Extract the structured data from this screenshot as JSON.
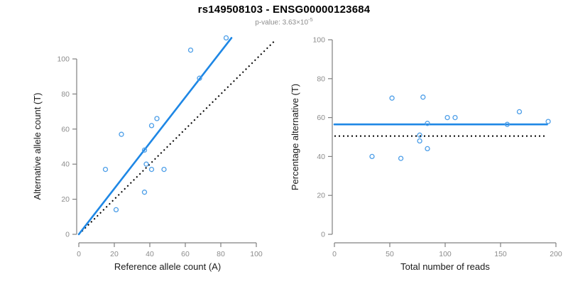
{
  "header": {
    "title": "rs149508103 - ENSG00000123684",
    "p_value_prefix": "p-value: 3.63×10",
    "p_value_exponent": "-5"
  },
  "colors": {
    "title": "#000000",
    "subtitle": "#8c8c8c",
    "axis": "#808080",
    "tick_labels": "#8c8c8c",
    "axis_labels": "#1a1a1a",
    "regression_line": "#1e87e5",
    "points": "#4c9ee8",
    "identity_line": "#000000"
  },
  "chart_data": [
    {
      "type": "scatter",
      "name": "allele-count-scatter",
      "xlabel": "Reference allele count (A)",
      "ylabel": "Alternative allele count (T)",
      "xlim": [
        0,
        100
      ],
      "ylim": [
        0,
        100
      ],
      "x_ticks": [
        0,
        20,
        40,
        60,
        80,
        100
      ],
      "y_ticks": [
        0,
        20,
        40,
        60,
        80,
        100
      ],
      "grid": false,
      "points": [
        [
          15,
          37
        ],
        [
          21,
          14
        ],
        [
          24,
          57
        ],
        [
          37,
          24
        ],
        [
          37,
          48
        ],
        [
          38,
          40
        ],
        [
          41,
          37
        ],
        [
          41,
          62
        ],
        [
          44,
          66
        ],
        [
          48,
          37
        ],
        [
          63,
          105
        ],
        [
          68,
          89
        ],
        [
          83,
          112
        ]
      ],
      "lines": [
        {
          "name": "identity-line",
          "style": "dotted",
          "from": [
            0,
            0
          ],
          "to": [
            110.5,
            110.5
          ],
          "meaning": "y = x (50% reference)"
        },
        {
          "name": "regression-line",
          "style": "solid",
          "from": [
            0,
            0
          ],
          "to": [
            86,
            112
          ],
          "meaning": "fit, slope ~1.30"
        }
      ]
    },
    {
      "type": "scatter",
      "name": "percentage-scatter",
      "xlabel": "Total number of reads",
      "ylabel": "Percentage alternative (T)",
      "xlim": [
        0,
        200
      ],
      "ylim": [
        0,
        100
      ],
      "x_ticks": [
        0,
        50,
        100,
        150,
        200
      ],
      "y_ticks": [
        0,
        20,
        40,
        60,
        80,
        100
      ],
      "grid": false,
      "points": [
        [
          34,
          40
        ],
        [
          52,
          70
        ],
        [
          60,
          39
        ],
        [
          77,
          48
        ],
        [
          77,
          51
        ],
        [
          80,
          70.5
        ],
        [
          84,
          44
        ],
        [
          84,
          57
        ],
        [
          102,
          60
        ],
        [
          109,
          60
        ],
        [
          156,
          56.5
        ],
        [
          167,
          63
        ],
        [
          193,
          58
        ]
      ],
      "lines": [
        {
          "name": "null-line",
          "style": "dotted",
          "from": [
            0,
            50.5
          ],
          "to": [
            190,
            50.5
          ],
          "meaning": "50% expectation"
        },
        {
          "name": "fitted-line",
          "style": "solid",
          "from": [
            0,
            56.5
          ],
          "to": [
            192,
            56.5
          ],
          "meaning": "mean percentage ~56.5%"
        }
      ]
    }
  ]
}
